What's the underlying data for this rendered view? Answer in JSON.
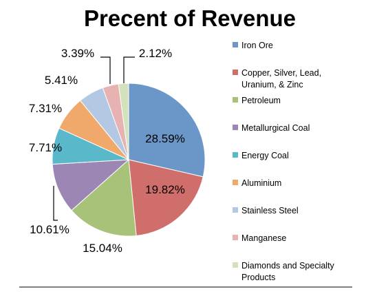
{
  "chart_data": {
    "type": "pie",
    "title": "Precent of Revenue",
    "slices": [
      {
        "label": "Iron Ore",
        "value": 28.59,
        "display": "28.59%",
        "color": "#6a97c7"
      },
      {
        "label": "Copper, Silver, Lead, Uranium, & Zinc",
        "display": "19.82%",
        "value": 19.82,
        "color": "#d06e6b"
      },
      {
        "label": "Petroleum",
        "value": 15.04,
        "display": "15.04%",
        "color": "#a9c27a"
      },
      {
        "label": "Metallurgical Coal",
        "value": 10.61,
        "display": "10.61%",
        "color": "#9c86b4"
      },
      {
        "label": "Energy Coal",
        "value": 7.71,
        "display": "7.71%",
        "color": "#5ab8cb"
      },
      {
        "label": "Aluminium",
        "value": 7.31,
        "display": "7.31%",
        "color": "#f0a96a"
      },
      {
        "label": "Stainless Steel",
        "value": 5.41,
        "display": "5.41%",
        "color": "#b3c8e2"
      },
      {
        "label": "Manganese",
        "value": 3.39,
        "display": "3.39%",
        "color": "#e6b2b2"
      },
      {
        "label": "Diamonds and Specialty Products",
        "value": 2.12,
        "display": "2.12%",
        "color": "#d3e2bd"
      }
    ],
    "legend": {
      "position": "right",
      "entries": [
        [
          "Iron Ore"
        ],
        [
          "Copper, Silver, Lead,",
          "Uranium, & Zinc"
        ],
        [
          "Petroleum"
        ],
        [
          "Metallurgical Coal"
        ],
        [
          "Energy Coal"
        ],
        [
          "Aluminium"
        ],
        [
          "Stainless Steel"
        ],
        [
          "Manganese"
        ],
        [
          "Diamonds and Specialty",
          "Products"
        ]
      ]
    }
  }
}
